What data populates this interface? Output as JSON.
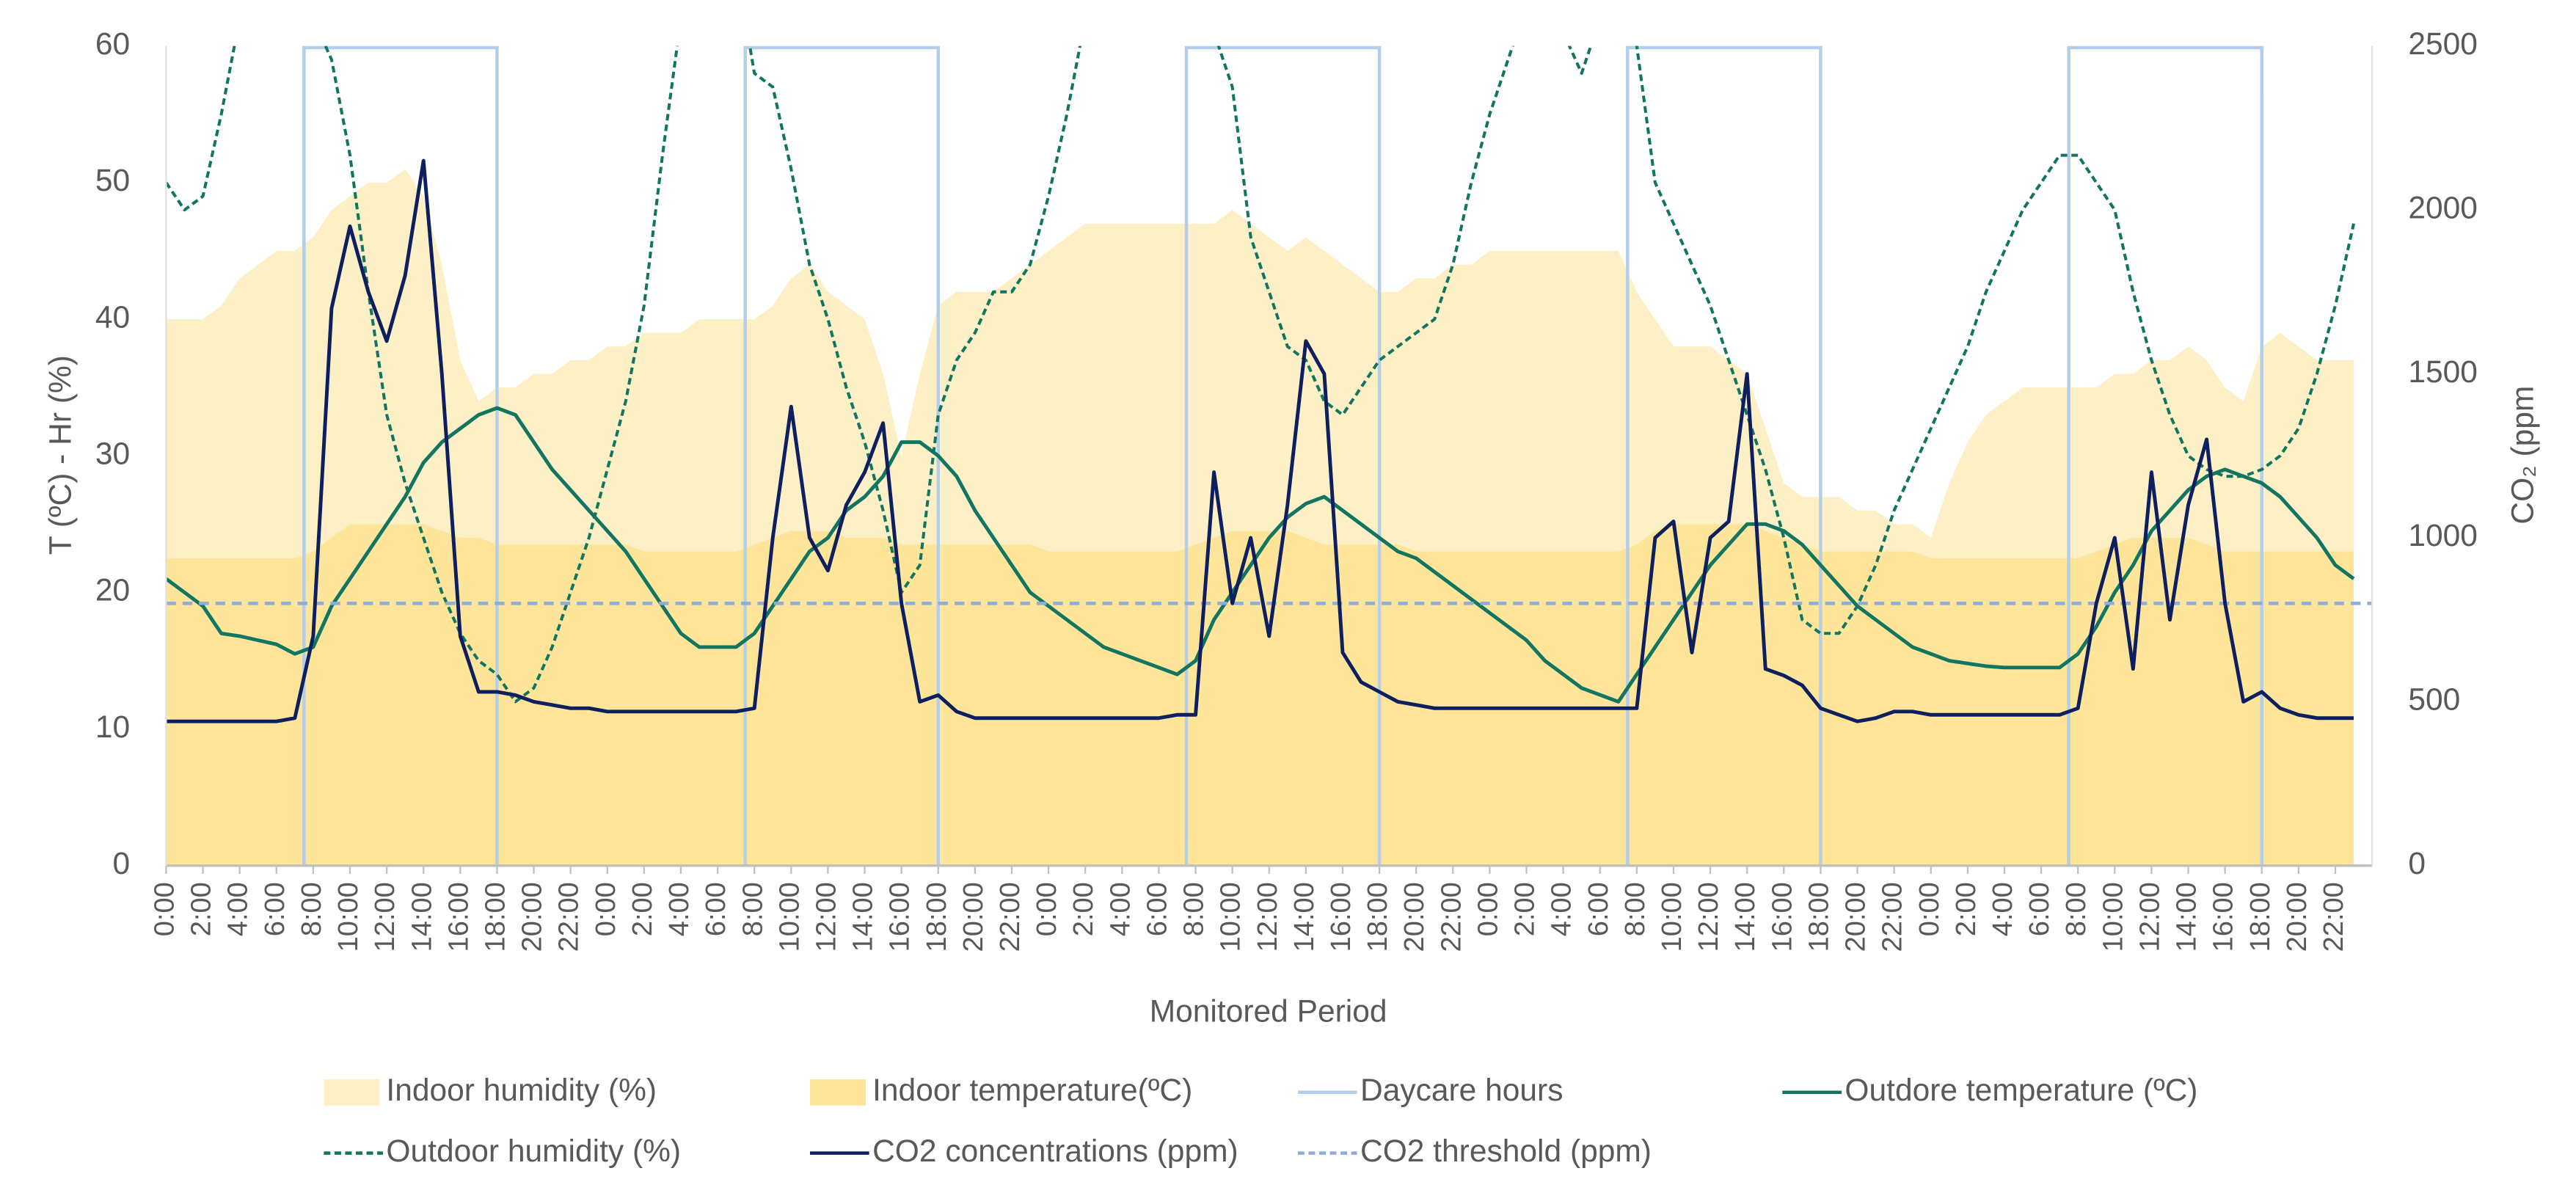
{
  "chart_data": {
    "type": "line",
    "ylabel": "T (ºC) - Hr (%)",
    "y2label": "CO₂ (ppm",
    "xlabel": "Monitored Period",
    "xlim": [
      0,
      120
    ],
    "ylim": [
      0,
      60
    ],
    "yticks": [
      0,
      10,
      20,
      30,
      40,
      50,
      60
    ],
    "y2lim": [
      0,
      2500
    ],
    "y2ticks": [
      0,
      500,
      1000,
      1500,
      2000,
      2500
    ],
    "x": [
      0,
      1,
      2,
      3,
      4,
      5,
      6,
      7,
      8,
      9,
      10,
      11,
      12,
      13,
      14,
      15,
      16,
      17,
      18,
      19,
      20,
      21,
      22,
      23,
      24,
      25,
      26,
      27,
      28,
      29,
      30,
      31,
      32,
      33,
      34,
      35,
      36,
      37,
      38,
      39,
      40,
      41,
      42,
      43,
      44,
      45,
      46,
      47,
      48,
      49,
      50,
      51,
      52,
      53,
      54,
      55,
      56,
      57,
      58,
      59,
      60,
      61,
      62,
      63,
      64,
      65,
      66,
      67,
      68,
      69,
      70,
      71,
      72,
      73,
      74,
      75,
      76,
      77,
      78,
      79,
      80,
      81,
      82,
      83,
      84,
      85,
      86,
      87,
      88,
      89,
      90,
      91,
      92,
      93,
      94,
      95,
      96,
      97,
      98,
      99,
      100,
      101,
      102,
      103,
      104,
      105,
      106,
      107,
      108,
      109,
      110,
      111,
      112,
      113,
      114,
      115,
      116,
      117,
      118,
      119
    ],
    "xticks": [
      {
        "value": 0,
        "label": "0:00"
      },
      {
        "value": 2,
        "label": "2:00"
      },
      {
        "value": 4,
        "label": "4:00"
      },
      {
        "value": 6,
        "label": "6:00"
      },
      {
        "value": 8,
        "label": "8:00"
      },
      {
        "value": 10,
        "label": "10:00"
      },
      {
        "value": 12,
        "label": "12:00"
      },
      {
        "value": 14,
        "label": "14:00"
      },
      {
        "value": 16,
        "label": "16:00"
      },
      {
        "value": 18,
        "label": "18:00"
      },
      {
        "value": 20,
        "label": "20:00"
      },
      {
        "value": 22,
        "label": "22:00"
      },
      {
        "value": 24,
        "label": "0:00"
      },
      {
        "value": 26,
        "label": "2:00"
      },
      {
        "value": 28,
        "label": "4:00"
      },
      {
        "value": 30,
        "label": "6:00"
      },
      {
        "value": 32,
        "label": "8:00"
      },
      {
        "value": 34,
        "label": "10:00"
      },
      {
        "value": 36,
        "label": "12:00"
      },
      {
        "value": 38,
        "label": "14:00"
      },
      {
        "value": 40,
        "label": "16:00"
      },
      {
        "value": 42,
        "label": "18:00"
      },
      {
        "value": 44,
        "label": "20:00"
      },
      {
        "value": 46,
        "label": "22:00"
      },
      {
        "value": 48,
        "label": "0:00"
      },
      {
        "value": 50,
        "label": "2:00"
      },
      {
        "value": 52,
        "label": "4:00"
      },
      {
        "value": 54,
        "label": "6:00"
      },
      {
        "value": 56,
        "label": "8:00"
      },
      {
        "value": 58,
        "label": "10:00"
      },
      {
        "value": 60,
        "label": "12:00"
      },
      {
        "value": 62,
        "label": "14:00"
      },
      {
        "value": 64,
        "label": "16:00"
      },
      {
        "value": 66,
        "label": "18:00"
      },
      {
        "value": 68,
        "label": "20:00"
      },
      {
        "value": 70,
        "label": "22:00"
      },
      {
        "value": 72,
        "label": "0:00"
      },
      {
        "value": 74,
        "label": "2:00"
      },
      {
        "value": 76,
        "label": "4:00"
      },
      {
        "value": 78,
        "label": "6:00"
      },
      {
        "value": 80,
        "label": "8:00"
      },
      {
        "value": 82,
        "label": "10:00"
      },
      {
        "value": 84,
        "label": "12:00"
      },
      {
        "value": 86,
        "label": "14:00"
      },
      {
        "value": 88,
        "label": "16:00"
      },
      {
        "value": 90,
        "label": "18:00"
      },
      {
        "value": 92,
        "label": "20:00"
      },
      {
        "value": 94,
        "label": "22:00"
      },
      {
        "value": 96,
        "label": "0:00"
      },
      {
        "value": 98,
        "label": "2:00"
      },
      {
        "value": 100,
        "label": "4:00"
      },
      {
        "value": 102,
        "label": "6:00"
      },
      {
        "value": 104,
        "label": "8:00"
      },
      {
        "value": 106,
        "label": "10:00"
      },
      {
        "value": 108,
        "label": "12:00"
      },
      {
        "value": 110,
        "label": "14:00"
      },
      {
        "value": 112,
        "label": "16:00"
      },
      {
        "value": 114,
        "label": "18:00"
      },
      {
        "value": 116,
        "label": "20:00"
      },
      {
        "value": 118,
        "label": "22:00"
      }
    ],
    "series": [
      {
        "name": "Indoor humidity (%)",
        "type": "area",
        "color": "#fdefc6",
        "values": [
          40,
          40,
          40,
          41,
          43,
          44,
          45,
          45,
          46,
          48,
          49,
          50,
          50,
          51,
          49,
          44,
          37,
          34,
          35,
          35,
          36,
          36,
          37,
          37,
          38,
          38,
          39,
          39,
          39,
          40,
          40,
          40,
          40,
          41,
          43,
          44,
          42,
          41,
          40,
          36,
          30,
          36,
          41,
          42,
          42,
          42,
          43,
          44,
          45,
          46,
          47,
          47,
          47,
          47,
          47,
          47,
          47,
          47,
          48,
          47,
          46,
          45,
          46,
          45,
          44,
          43,
          42,
          42,
          43,
          43,
          44,
          44,
          45,
          45,
          45,
          45,
          45,
          45,
          45,
          45,
          42,
          40,
          38,
          38,
          38,
          37,
          36,
          32,
          28,
          27,
          27,
          27,
          26,
          26,
          25,
          25,
          24,
          28,
          31,
          33,
          34,
          35,
          35,
          35,
          35,
          35,
          36,
          36,
          37,
          37,
          38,
          37,
          35,
          34,
          38,
          39,
          38,
          37,
          37,
          37
        ]
      },
      {
        "name": "Indoor temperature(ºC)",
        "type": "area",
        "color": "#fee59a",
        "values": [
          22.5,
          22.5,
          22.5,
          22.5,
          22.5,
          22.5,
          22.5,
          22.5,
          23,
          24,
          25,
          25,
          25,
          25,
          25,
          24.5,
          24,
          24,
          23.5,
          23.5,
          23.5,
          23.5,
          23.5,
          23.5,
          23.5,
          23.5,
          23,
          23,
          23,
          23,
          23,
          23,
          23.5,
          24,
          24.5,
          24.5,
          24.5,
          24,
          24,
          24,
          23.5,
          23.5,
          23.5,
          23.5,
          23.5,
          23.5,
          23.5,
          23.5,
          23,
          23,
          23,
          23,
          23,
          23,
          23,
          23,
          23.5,
          24,
          24.5,
          24.5,
          24.5,
          24.5,
          24,
          23.5,
          23.5,
          23.5,
          23.5,
          23.5,
          23,
          23,
          23,
          23,
          23,
          23,
          23,
          23,
          23,
          23,
          23,
          23,
          23.5,
          24.5,
          25,
          25,
          25,
          25,
          25,
          24.5,
          24,
          23.5,
          23,
          23,
          23,
          23,
          23,
          23,
          22.5,
          22.5,
          22.5,
          22.5,
          22.5,
          22.5,
          22.5,
          22.5,
          22.5,
          23,
          23.5,
          24,
          24,
          24,
          24,
          23.5,
          23,
          23,
          23,
          23,
          23,
          23,
          23,
          23
        ]
      },
      {
        "name": "Daycare  hours",
        "type": "span",
        "color": "#b4cde8",
        "spans": [
          [
            7.5,
            18
          ],
          [
            31.5,
            42
          ],
          [
            55.5,
            66
          ],
          [
            79.5,
            90
          ],
          [
            103.5,
            114
          ]
        ]
      },
      {
        "name": "Outdore temperature (ºC)",
        "type": "line",
        "color": "#127560",
        "values": [
          21,
          20,
          19,
          17,
          16.8,
          16.5,
          16.2,
          15.5,
          16,
          19,
          21,
          23,
          25,
          27,
          29.5,
          31,
          32,
          33,
          33.5,
          33,
          31,
          29,
          27.5,
          26,
          24.5,
          23,
          21,
          19,
          17,
          16,
          16,
          16,
          17,
          19,
          21,
          23,
          24,
          26,
          27,
          28.5,
          31,
          31,
          30,
          28.5,
          26,
          24,
          22,
          20,
          19,
          18,
          17,
          16,
          15.5,
          15,
          14.5,
          14,
          15,
          18,
          20,
          22,
          24,
          25.5,
          26.5,
          27,
          26,
          25,
          24,
          23,
          22.5,
          21.5,
          20.5,
          19.5,
          18.5,
          17.5,
          16.5,
          15,
          14,
          13,
          12.5,
          12,
          14,
          16,
          18,
          20,
          22,
          23.5,
          25,
          25,
          24.5,
          23.5,
          22,
          20.5,
          19,
          18,
          17,
          16,
          15.5,
          15,
          14.8,
          14.6,
          14.5,
          14.5,
          14.5,
          14.5,
          15.5,
          17.5,
          20,
          22,
          24.5,
          26,
          27.5,
          28.5,
          29,
          28.5,
          28,
          27,
          25.5,
          24,
          22,
          21
        ]
      },
      {
        "name": "Outdoor humidity (%)",
        "type": "line",
        "dash": true,
        "color": "#127560",
        "values": [
          50,
          48,
          49,
          55,
          62,
          66,
          68,
          66,
          62,
          59,
          52,
          42,
          33,
          28,
          24,
          20,
          17,
          15,
          14,
          12,
          13,
          16,
          20,
          24,
          29,
          34,
          41,
          52,
          62,
          68,
          70,
          66,
          58,
          57,
          51,
          44,
          40,
          35,
          31,
          26,
          20,
          22,
          33,
          37,
          39,
          42,
          42,
          44,
          49,
          55,
          62,
          68,
          70,
          70,
          68,
          66,
          63,
          61,
          57,
          46,
          42,
          38,
          37,
          34,
          33,
          35,
          37,
          38,
          39,
          40,
          44,
          50,
          55,
          59,
          63,
          63,
          61,
          58,
          62,
          62,
          60,
          50,
          47,
          44,
          41,
          37,
          33,
          29,
          24,
          18,
          17,
          17,
          19,
          22,
          26,
          29,
          32,
          35,
          38,
          42,
          45,
          48,
          50,
          52,
          52,
          50,
          48,
          42,
          37,
          33,
          30,
          29,
          28.5,
          28.5,
          29,
          30,
          32,
          36,
          41,
          47
        ]
      },
      {
        "name": "CO2 concentrations (ppm)",
        "type": "line",
        "axis": "y2",
        "color": "#0e1f5f",
        "values": [
          440,
          440,
          440,
          440,
          440,
          440,
          440,
          450,
          700,
          1700,
          1950,
          1750,
          1600,
          1800,
          2150,
          1500,
          700,
          530,
          530,
          520,
          500,
          490,
          480,
          480,
          470,
          470,
          470,
          470,
          470,
          470,
          470,
          470,
          480,
          1000,
          1400,
          1000,
          900,
          1100,
          1200,
          1350,
          800,
          500,
          520,
          470,
          450,
          450,
          450,
          450,
          450,
          450,
          450,
          450,
          450,
          450,
          450,
          460,
          460,
          1200,
          800,
          1000,
          700,
          1100,
          1600,
          1500,
          650,
          560,
          530,
          500,
          490,
          480,
          480,
          480,
          480,
          480,
          480,
          480,
          480,
          480,
          480,
          480,
          480,
          1000,
          1050,
          650,
          1000,
          1050,
          1500,
          600,
          580,
          550,
          480,
          460,
          440,
          450,
          470,
          470,
          460,
          460,
          460,
          460,
          460,
          460,
          460,
          460,
          480,
          800,
          1000,
          600,
          1200,
          750,
          1100,
          1300,
          800,
          500,
          530,
          480,
          460,
          450,
          450,
          450
        ]
      },
      {
        "name": "CO2 threshold (ppm)",
        "type": "hline",
        "axis": "y2",
        "dash": true,
        "color": "#8eacdb",
        "value": 800
      }
    ]
  }
}
